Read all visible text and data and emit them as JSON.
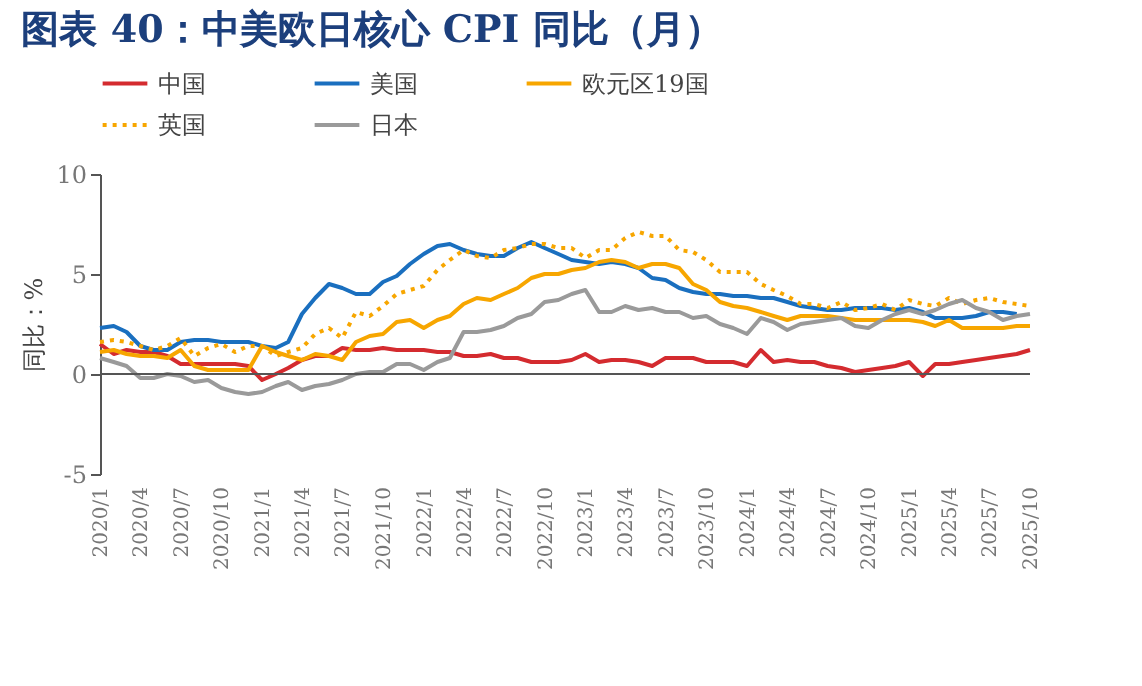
{
  "chart_data": {
    "type": "line",
    "title": "图表 40：中美欧日核心 CPI 同比（月）",
    "ylabel": "同比：%",
    "x": [
      "2020-01",
      "2020-02",
      "2020-03",
      "2020-04",
      "2020-05",
      "2020-06",
      "2020-07",
      "2020-08",
      "2020-09",
      "2020-10",
      "2020-11",
      "2020-12",
      "2021-01",
      "2021-02",
      "2021-03",
      "2021-04",
      "2021-05",
      "2021-06",
      "2021-07",
      "2021-08",
      "2021-09",
      "2021-10",
      "2021-11",
      "2021-12",
      "2022-01",
      "2022-02",
      "2022-03",
      "2022-04",
      "2022-05",
      "2022-06",
      "2022-07",
      "2022-08",
      "2022-09",
      "2022-10",
      "2022-11",
      "2022-12",
      "2023-01",
      "2023-02",
      "2023-03",
      "2023-04",
      "2023-05",
      "2023-06",
      "2023-07",
      "2023-08",
      "2023-09",
      "2023-10",
      "2023-11",
      "2023-12",
      "2024-01",
      "2024-02",
      "2024-03",
      "2024-04",
      "2024-05",
      "2024-06",
      "2024-07",
      "2024-08",
      "2024-09",
      "2024-10",
      "2024-11",
      "2024-12",
      "2025-01",
      "2025-02",
      "2025-03",
      "2025-04",
      "2025-05",
      "2025-06",
      "2025-07",
      "2025-08",
      "2025-09",
      "2025-10"
    ],
    "series": [
      {
        "name": "中国",
        "color": "#d42b2f",
        "values": [
          1.5,
          1.0,
          1.2,
          1.1,
          1.1,
          0.9,
          0.5,
          0.5,
          0.5,
          0.5,
          0.5,
          0.4,
          -0.3,
          0.0,
          0.3,
          0.7,
          0.9,
          0.9,
          1.3,
          1.2,
          1.2,
          1.3,
          1.2,
          1.2,
          1.2,
          1.1,
          1.1,
          0.9,
          0.9,
          1.0,
          0.8,
          0.8,
          0.6,
          0.6,
          0.6,
          0.7,
          1.0,
          0.6,
          0.7,
          0.7,
          0.6,
          0.4,
          0.8,
          0.8,
          0.8,
          0.6,
          0.6,
          0.6,
          0.4,
          1.2,
          0.6,
          0.7,
          0.6,
          0.6,
          0.4,
          0.3,
          0.1,
          0.2,
          0.3,
          0.4,
          0.6,
          -0.1,
          0.5,
          0.5,
          0.6,
          0.7,
          0.8,
          0.9,
          1.0,
          1.2
        ]
      },
      {
        "name": "美国",
        "color": "#1a6fbf",
        "values": [
          2.3,
          2.4,
          2.1,
          1.4,
          1.2,
          1.2,
          1.6,
          1.7,
          1.7,
          1.6,
          1.6,
          1.6,
          1.4,
          1.3,
          1.6,
          3.0,
          3.8,
          4.5,
          4.3,
          4.0,
          4.0,
          4.6,
          4.9,
          5.5,
          6.0,
          6.4,
          6.5,
          6.2,
          6.0,
          5.9,
          5.9,
          6.3,
          6.6,
          6.3,
          6.0,
          5.7,
          5.6,
          5.5,
          5.6,
          5.5,
          5.3,
          4.8,
          4.7,
          4.3,
          4.1,
          4.0,
          4.0,
          3.9,
          3.9,
          3.8,
          3.8,
          3.6,
          3.4,
          3.3,
          3.2,
          3.2,
          3.3,
          3.3,
          3.3,
          3.2,
          3.3,
          3.1,
          2.8,
          2.8,
          2.8,
          2.9,
          3.1,
          3.1,
          3.0,
          null
        ]
      },
      {
        "name": "欧元区19国",
        "color": "#f7a600",
        "values": [
          1.1,
          1.2,
          1.0,
          0.9,
          0.9,
          0.8,
          1.2,
          0.4,
          0.2,
          0.2,
          0.2,
          0.2,
          1.4,
          1.1,
          0.9,
          0.7,
          1.0,
          0.9,
          0.7,
          1.6,
          1.9,
          2.0,
          2.6,
          2.7,
          2.3,
          2.7,
          2.9,
          3.5,
          3.8,
          3.7,
          4.0,
          4.3,
          4.8,
          5.0,
          5.0,
          5.2,
          5.3,
          5.6,
          5.7,
          5.6,
          5.3,
          5.5,
          5.5,
          5.3,
          4.5,
          4.2,
          3.6,
          3.4,
          3.3,
          3.1,
          2.9,
          2.7,
          2.9,
          2.9,
          2.9,
          2.8,
          2.7,
          2.7,
          2.7,
          2.7,
          2.7,
          2.6,
          2.4,
          2.7,
          2.3,
          2.3,
          2.3,
          2.3,
          2.4,
          2.4
        ]
      },
      {
        "name": "英国",
        "color": "#f7a600",
        "line_style": "dotted",
        "values": [
          1.6,
          1.7,
          1.6,
          1.4,
          1.2,
          1.4,
          1.8,
          0.9,
          1.3,
          1.5,
          1.1,
          1.4,
          1.4,
          0.9,
          1.1,
          1.3,
          2.0,
          2.3,
          1.8,
          3.1,
          2.9,
          3.4,
          4.0,
          4.2,
          4.4,
          5.2,
          5.7,
          6.2,
          5.9,
          5.8,
          6.2,
          6.3,
          6.5,
          6.5,
          6.3,
          6.3,
          5.8,
          6.2,
          6.2,
          6.8,
          7.1,
          6.9,
          6.9,
          6.2,
          6.1,
          5.7,
          5.1,
          5.1,
          5.1,
          4.5,
          4.2,
          3.9,
          3.5,
          3.5,
          3.3,
          3.6,
          3.2,
          3.3,
          3.5,
          3.2,
          3.7,
          3.5,
          3.4,
          3.8,
          3.5,
          3.7,
          3.8,
          3.6,
          3.5,
          3.4
        ]
      },
      {
        "name": "日本",
        "color": "#9a9a9a",
        "values": [
          0.8,
          0.6,
          0.4,
          -0.2,
          -0.2,
          0.0,
          -0.1,
          -0.4,
          -0.3,
          -0.7,
          -0.9,
          -1.0,
          -0.9,
          -0.6,
          -0.4,
          -0.8,
          -0.6,
          -0.5,
          -0.3,
          0.0,
          0.1,
          0.1,
          0.5,
          0.5,
          0.2,
          0.6,
          0.8,
          2.1,
          2.1,
          2.2,
          2.4,
          2.8,
          3.0,
          3.6,
          3.7,
          4.0,
          4.2,
          3.1,
          3.1,
          3.4,
          3.2,
          3.3,
          3.1,
          3.1,
          2.8,
          2.9,
          2.5,
          2.3,
          2.0,
          2.8,
          2.6,
          2.2,
          2.5,
          2.6,
          2.7,
          2.8,
          2.4,
          2.3,
          2.7,
          3.0,
          3.2,
          3.0,
          3.2,
          3.5,
          3.7,
          3.3,
          3.1,
          2.7,
          2.9,
          3.0
        ]
      }
    ],
    "ylim": [
      -5,
      10
    ],
    "yticks": [
      -5,
      0,
      5,
      10
    ],
    "xlim": [
      "2020-01",
      "2025-10"
    ],
    "xticks": [
      {
        "value": "2020-01",
        "label": "2020/1"
      },
      {
        "value": "2020-04",
        "label": "2020/4"
      },
      {
        "value": "2020-07",
        "label": "2020/7"
      },
      {
        "value": "2020-10",
        "label": "2020/10"
      },
      {
        "value": "2021-01",
        "label": "2021/1"
      },
      {
        "value": "2021-04",
        "label": "2021/4"
      },
      {
        "value": "2021-07",
        "label": "2021/7"
      },
      {
        "value": "2021-10",
        "label": "2021/10"
      },
      {
        "value": "2022-01",
        "label": "2022/1"
      },
      {
        "value": "2022-04",
        "label": "2022/4"
      },
      {
        "value": "2022-07",
        "label": "2022/7"
      },
      {
        "value": "2022-10",
        "label": "2022/10"
      },
      {
        "value": "2023-01",
        "label": "2023/1"
      },
      {
        "value": "2023-04",
        "label": "2023/4"
      },
      {
        "value": "2023-07",
        "label": "2023/7"
      },
      {
        "value": "2023-10",
        "label": "2023/10"
      },
      {
        "value": "2024-01",
        "label": "2024/1"
      },
      {
        "value": "2024-04",
        "label": "2024/4"
      },
      {
        "value": "2024-07",
        "label": "2024/7"
      },
      {
        "value": "2024-10",
        "label": "2024/10"
      },
      {
        "value": "2025-01",
        "label": "2025/1"
      },
      {
        "value": "2025-04",
        "label": "2025/4"
      },
      {
        "value": "2025-07",
        "label": "2025/7"
      },
      {
        "value": "2025-10",
        "label": "2025/10"
      }
    ],
    "ref_lines": [
      {
        "axis": "y",
        "value": 0,
        "color": "#555555"
      }
    ],
    "grid": false,
    "legend": "top",
    "marker": "none",
    "line_style": "solid"
  }
}
